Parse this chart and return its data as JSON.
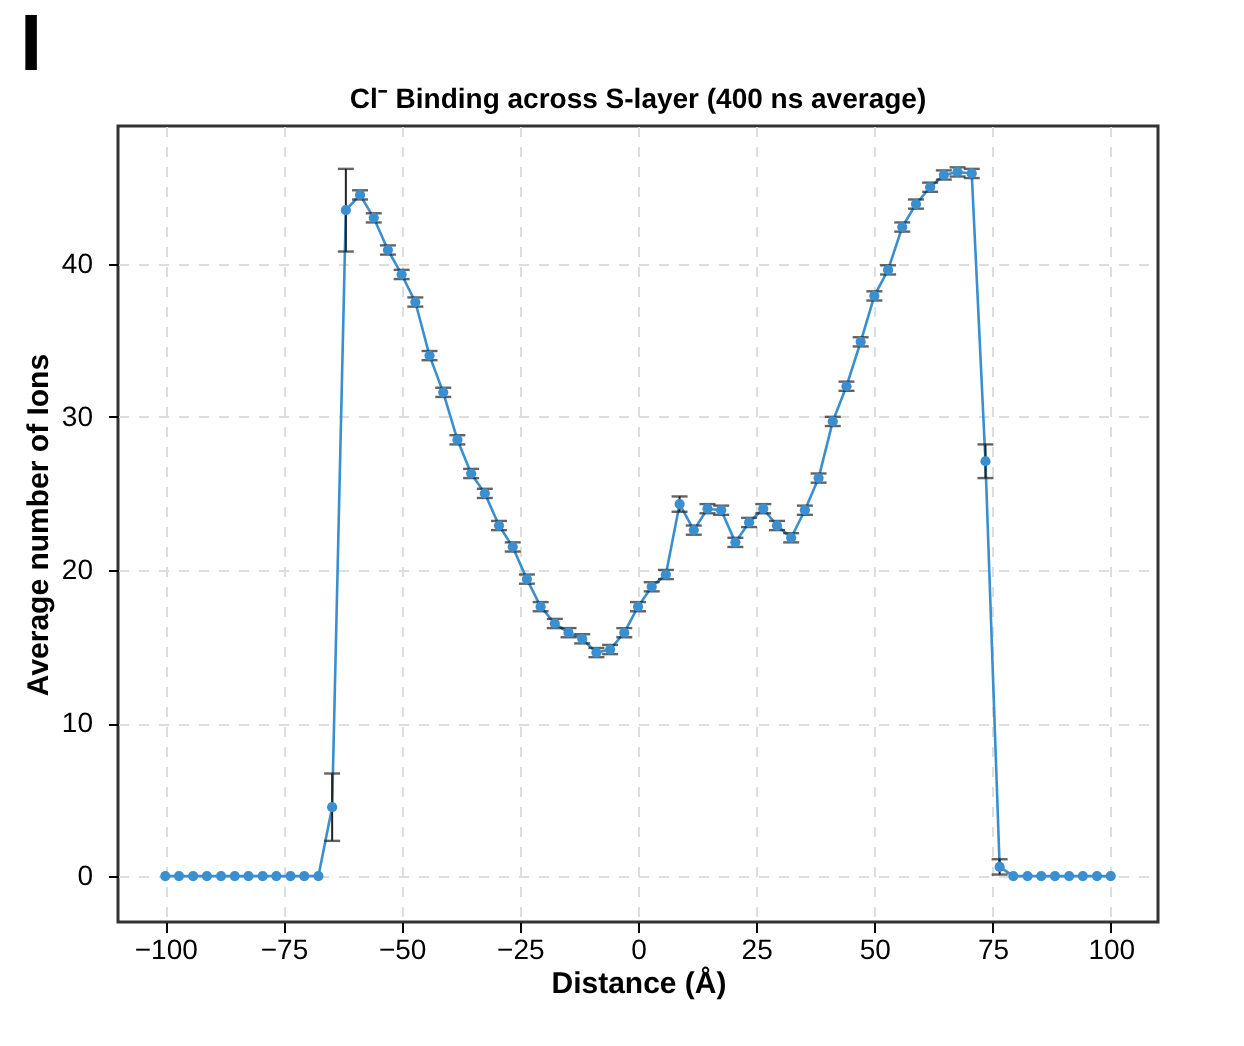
{
  "chart_data": {
    "type": "line",
    "title": "Cl⁻ Binding across S-layer (400 ns average)",
    "xlabel": "Distance (Å)",
    "ylabel": "Average number of Ions",
    "annotations": [
      "I"
    ],
    "x": [
      -100,
      -97.1,
      -94.1,
      -91.2,
      -88.2,
      -85.3,
      -82.4,
      -79.4,
      -76.5,
      -73.5,
      -70.6,
      -67.6,
      -64.7,
      -61.8,
      -58.8,
      -55.9,
      -52.9,
      -50,
      -47.1,
      -44.1,
      -41.2,
      -38.2,
      -35.3,
      -32.4,
      -29.4,
      -26.5,
      -23.5,
      -20.6,
      -17.6,
      -14.7,
      -11.8,
      -8.8,
      -5.9,
      -2.9,
      0,
      2.9,
      5.9,
      8.8,
      11.8,
      14.7,
      17.6,
      20.6,
      23.5,
      26.5,
      29.4,
      32.4,
      35.3,
      38.2,
      41.2,
      44.1,
      47.1,
      50,
      52.9,
      55.9,
      58.8,
      61.8,
      64.7,
      67.6,
      70.6,
      73.5,
      76.5,
      79.4,
      82.4,
      85.3,
      88.2,
      91.2,
      94.1,
      97.1,
      100
    ],
    "series": [
      {
        "color": "#3a8fd0",
        "values": [
          0,
          0,
          0,
          0,
          0,
          0,
          0,
          0,
          0,
          0,
          0,
          0,
          4.5,
          43.5,
          44.5,
          43.0,
          40.9,
          39.3,
          37.5,
          34.0,
          31.6,
          28.5,
          26.3,
          25.0,
          22.9,
          21.5,
          19.4,
          17.6,
          16.5,
          15.9,
          15.5,
          14.6,
          14.8,
          15.9,
          17.6,
          18.9,
          19.7,
          24.3,
          22.6,
          24.0,
          23.9,
          21.8,
          23.1,
          24.0,
          22.9,
          22.1,
          23.9,
          26.0,
          29.7,
          32.0,
          34.9,
          37.9,
          39.6,
          42.4,
          43.9,
          45.0,
          45.8,
          46.0,
          45.9,
          27.1,
          0.6,
          0,
          0,
          0,
          0,
          0,
          0,
          0,
          0
        ],
        "errors": [
          null,
          null,
          null,
          null,
          null,
          null,
          null,
          null,
          null,
          null,
          null,
          null,
          2.2,
          2.7,
          0.3,
          0.3,
          0.3,
          0.3,
          0.3,
          0.3,
          0.3,
          0.3,
          0.3,
          0.3,
          0.3,
          0.3,
          0.3,
          0.3,
          0.3,
          0.3,
          0.3,
          0.3,
          0.3,
          0.3,
          0.3,
          0.3,
          0.3,
          0.5,
          0.3,
          0.3,
          0.3,
          0.3,
          0.3,
          0.3,
          0.3,
          0.3,
          0.3,
          0.3,
          0.3,
          0.3,
          0.3,
          0.3,
          0.3,
          0.3,
          0.3,
          0.3,
          0.3,
          0.3,
          0.3,
          1.1,
          0.5,
          null,
          null,
          null,
          null,
          null,
          null,
          null,
          null
        ]
      }
    ],
    "xlim": [
      -110,
      110
    ],
    "ylim": [
      -3,
      49
    ],
    "xticks": [
      -100,
      -75,
      -50,
      -25,
      0,
      25,
      50,
      75,
      100
    ],
    "yticks": [
      0,
      10,
      20,
      30,
      40
    ],
    "grid": true,
    "marker": "circle",
    "line_style": "solid"
  }
}
